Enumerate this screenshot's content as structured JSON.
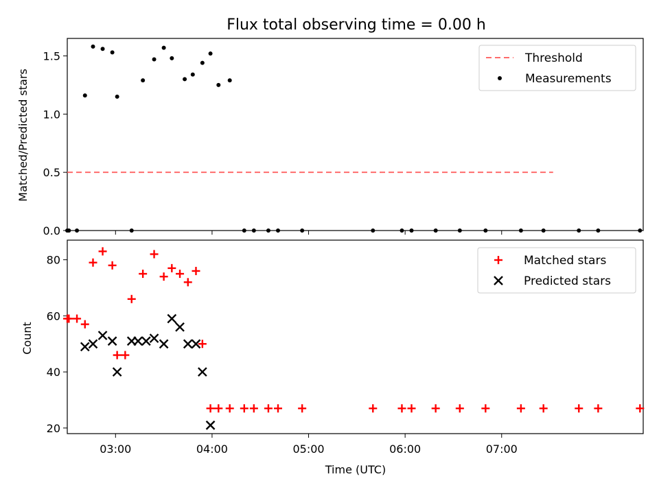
{
  "chart_data": [
    {
      "type": "scatter",
      "title": "Flux total observing time = 0.00 h",
      "xlabel": "",
      "ylabel": "Matched/Predicted stars",
      "ylim": [
        0.0,
        1.65
      ],
      "yticks": [
        "0.0",
        "0.5",
        "1.0",
        "1.5"
      ],
      "ytick_values": [
        0.0,
        0.5,
        1.0,
        1.5
      ],
      "legend_position": "upper right",
      "colors": {
        "threshold": "#ff6b6b",
        "measurements": "#000000"
      },
      "series": [
        {
          "name": "Threshold",
          "kind": "dashed-line",
          "x": [
            "02:30",
            "07:32"
          ],
          "values": [
            0.5,
            0.5
          ]
        },
        {
          "name": "Measurements",
          "kind": "points",
          "x": [
            "02:30",
            "02:31",
            "02:36",
            "02:41",
            "02:46",
            "02:52",
            "02:58",
            "03:01",
            "03:10",
            "03:17",
            "03:24",
            "03:30",
            "03:35",
            "03:43",
            "03:48",
            "03:54",
            "03:59",
            "04:04",
            "04:11",
            "04:20",
            "04:26",
            "04:35",
            "04:41",
            "04:56",
            "05:40",
            "05:58",
            "06:04",
            "06:19",
            "06:34",
            "06:50",
            "07:12",
            "07:26",
            "07:48",
            "08:00",
            "08:26"
          ],
          "values": [
            0.0,
            0.0,
            0.0,
            1.16,
            1.58,
            1.56,
            1.53,
            1.15,
            0.0,
            1.29,
            1.47,
            1.57,
            1.48,
            1.3,
            1.34,
            1.44,
            1.52,
            1.25,
            1.29,
            0.0,
            0.0,
            0.0,
            0.0,
            0.0,
            0.0,
            0.0,
            0.0,
            0.0,
            0.0,
            0.0,
            0.0,
            0.0,
            0.0,
            0.0,
            0.0
          ]
        }
      ]
    },
    {
      "type": "scatter",
      "title": "",
      "xlabel": "Time (UTC)",
      "ylabel": "Count",
      "ylim": [
        18,
        87
      ],
      "yticks": [
        "20",
        "40",
        "60",
        "80"
      ],
      "ytick_values": [
        20,
        40,
        60,
        80
      ],
      "xticks": [
        "03:00",
        "04:00",
        "05:00",
        "06:00",
        "07:00"
      ],
      "legend_position": "upper right",
      "colors": {
        "matched": "#ff0000",
        "predicted": "#000000"
      },
      "series": [
        {
          "name": "Matched stars",
          "marker": "plus",
          "x": [
            "02:30",
            "02:31",
            "02:36",
            "02:41",
            "02:46",
            "02:52",
            "02:58",
            "03:01",
            "03:06",
            "03:10",
            "03:17",
            "03:24",
            "03:30",
            "03:35",
            "03:40",
            "03:45",
            "03:50",
            "03:54",
            "03:59",
            "04:04",
            "04:11",
            "04:20",
            "04:26",
            "04:35",
            "04:41",
            "04:56",
            "05:40",
            "05:58",
            "06:04",
            "06:19",
            "06:34",
            "06:50",
            "07:12",
            "07:26",
            "07:48",
            "08:00",
            "08:26"
          ],
          "values": [
            59,
            59,
            59,
            57,
            79,
            83,
            78,
            46,
            46,
            66,
            75,
            82,
            74,
            77,
            75,
            72,
            76,
            50,
            27,
            27,
            27,
            27,
            27,
            27,
            27,
            27,
            27,
            27,
            27,
            27,
            27,
            27,
            27,
            27,
            27,
            27,
            27
          ]
        },
        {
          "name": "Predicted stars",
          "marker": "x",
          "x": [
            "02:41",
            "02:46",
            "02:52",
            "02:58",
            "03:01",
            "03:10",
            "03:14",
            "03:19",
            "03:24",
            "03:30",
            "03:35",
            "03:40",
            "03:45",
            "03:50",
            "03:54",
            "03:59"
          ],
          "values": [
            49,
            50,
            53,
            51,
            40,
            51,
            51,
            51,
            52,
            50,
            59,
            56,
            50,
            50,
            40,
            21
          ]
        }
      ]
    }
  ]
}
